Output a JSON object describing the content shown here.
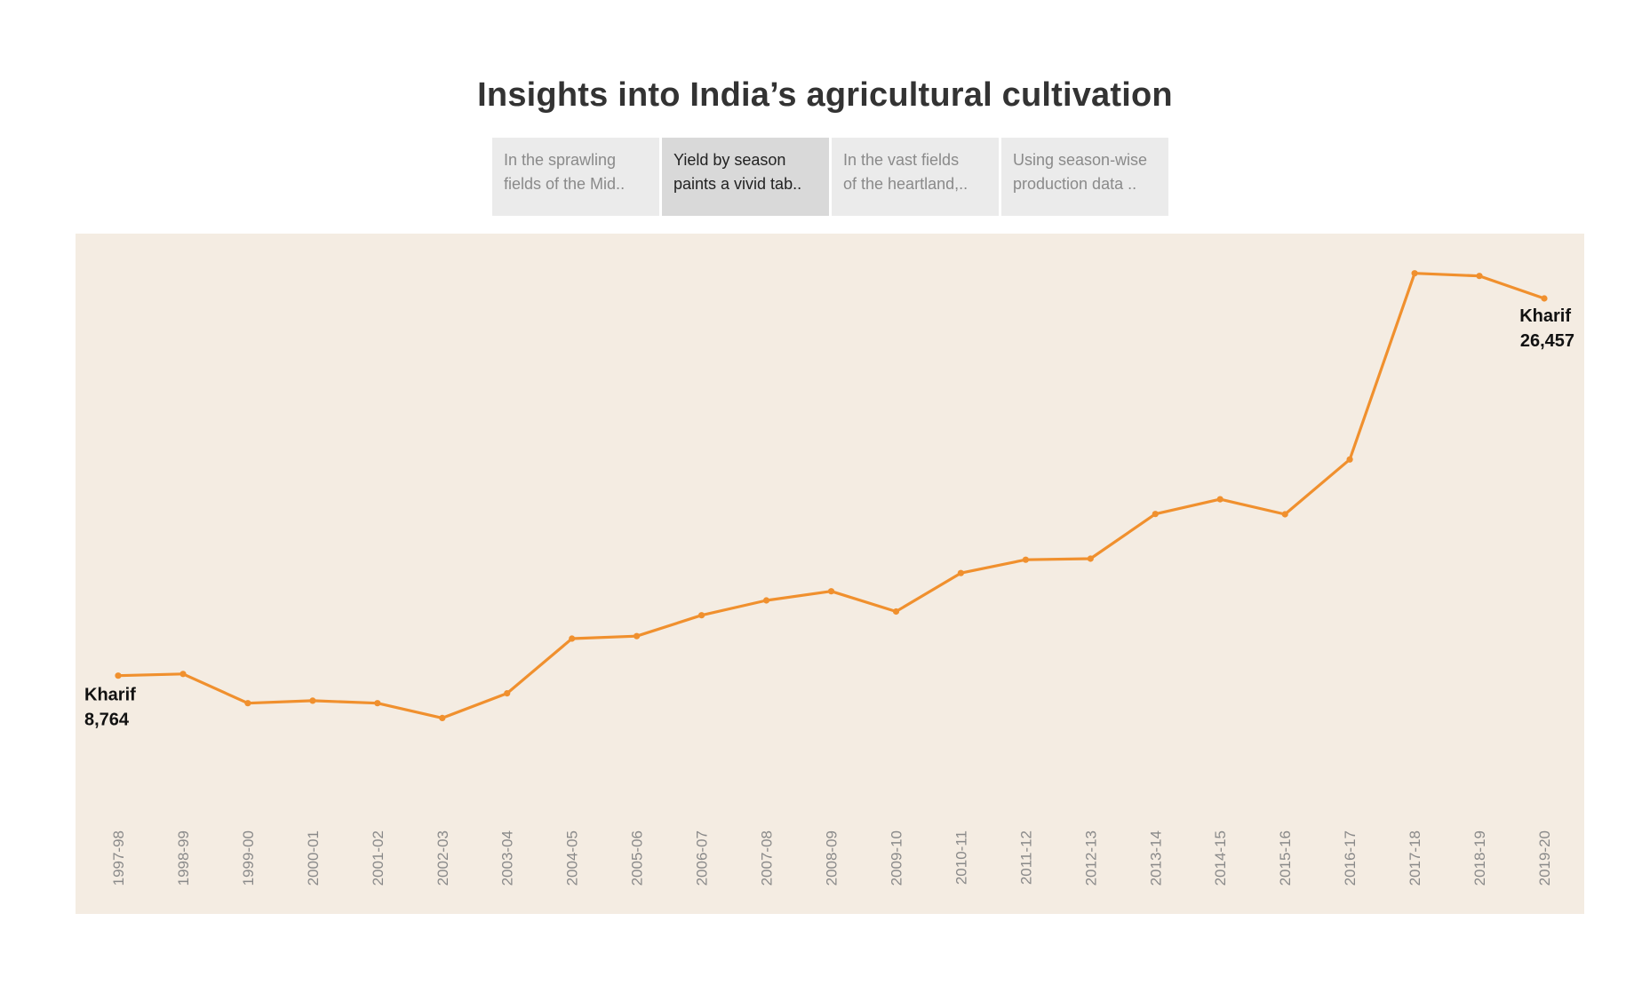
{
  "title": "Insights into India’s agricultural cultivation",
  "story_points": [
    {
      "line1": "In the sprawling",
      "line2": "fields of the Mid..",
      "active": false
    },
    {
      "line1": "Yield by season",
      "line2": "paints a vivid tab..",
      "active": true
    },
    {
      "line1": "In the vast fields",
      "line2": "of the heartland,..",
      "active": false
    },
    {
      "line1": "Using season-wise",
      "line2": "production data ..",
      "active": false
    }
  ],
  "colors": {
    "line": "#f0902e",
    "background": "#f4ece2"
  },
  "chart_data": {
    "type": "line",
    "title": "",
    "xlabel": "",
    "ylabel": "",
    "categories": [
      "1997-98",
      "1998-99",
      "1999-00",
      "2000-01",
      "2001-02",
      "2002-03",
      "2003-04",
      "2004-05",
      "2005-06",
      "2006-07",
      "2007-08",
      "2008-09",
      "2009-10",
      "2010-11",
      "2011-12",
      "2012-13",
      "2013-14",
      "2014-15",
      "2015-16",
      "2016-17",
      "2017-18",
      "2018-19",
      "2019-20"
    ],
    "series": [
      {
        "name": "Kharif",
        "values": [
          8764,
          8843,
          7471,
          7586,
          7471,
          6777,
          7933,
          10501,
          10617,
          11597,
          12290,
          12719,
          11771,
          13574,
          14198,
          14251,
          16344,
          17039,
          16335,
          18903,
          27638,
          27513,
          26457
        ]
      }
    ],
    "ylim": [
      2000,
      29500
    ],
    "grid": false,
    "legend": "none",
    "end_labels": {
      "first": {
        "series": "Kharif",
        "value": "8,764"
      },
      "last": {
        "series": "Kharif",
        "value": "26,457"
      }
    }
  }
}
